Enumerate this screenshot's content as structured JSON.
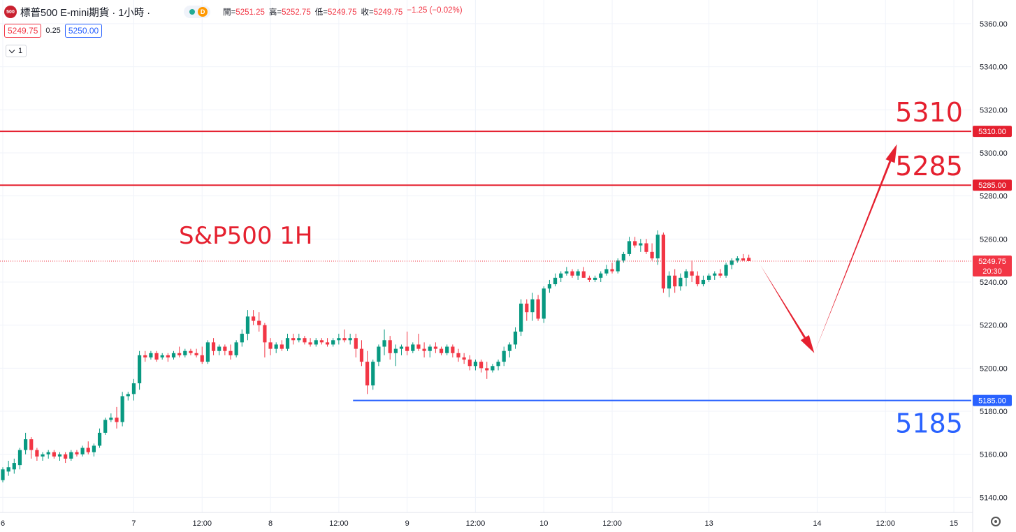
{
  "header": {
    "logo_text": "500",
    "symbol": "標普500 E-mini期貨 · 1小時 ·",
    "market_badge": "D",
    "ohlc": {
      "open_label": "開=",
      "open": "5251.25",
      "high_label": "高=",
      "high": "5252.75",
      "low_label": "低=",
      "low": "5249.75",
      "close_label": "收=",
      "close": "5249.75",
      "change": "−1.25 (−0.02%)"
    },
    "bid": "5249.75",
    "spread": "0.25",
    "ask": "5250.00",
    "indicators_count": "1"
  },
  "colors": {
    "up": "#089981",
    "down": "#f23645",
    "resistance": "#e5202f",
    "support": "#2962ff",
    "annotation": "#e5202f"
  },
  "chart_data": {
    "type": "candlestick",
    "title": "S&P500 1H",
    "y_axis": {
      "ylim": [
        5133,
        5371
      ],
      "ticks": [
        "5140.00",
        "5160.00",
        "5180.00",
        "5200.00",
        "5220.00",
        "5240.00",
        "5260.00",
        "5280.00",
        "5300.00",
        "5320.00",
        "5340.00",
        "5360.00"
      ],
      "position": "right"
    },
    "x_axis": {
      "ticks": [
        {
          "label": "6",
          "x": 0
        },
        {
          "label": "7",
          "x": 23
        },
        {
          "label": "12:00",
          "x": 35
        },
        {
          "label": "8",
          "x": 47
        },
        {
          "label": "12:00",
          "x": 59
        },
        {
          "label": "9",
          "x": 71
        },
        {
          "label": "12:00",
          "x": 83
        },
        {
          "label": "10",
          "x": 95
        },
        {
          "label": "12:00",
          "x": 107
        },
        {
          "label": "13",
          "x": 124
        },
        {
          "label": "14",
          "x": 143
        },
        {
          "label": "12:00",
          "x": 155
        },
        {
          "label": "15",
          "x": 167
        }
      ]
    },
    "current_price": {
      "value": 5249.75,
      "label": "5249.75",
      "countdown": "20:30"
    },
    "levels": [
      {
        "name": "resistance-5310",
        "value": 5310,
        "label": "5310.00",
        "annotation": "5310",
        "color": "#e5202f",
        "x_start": -4
      },
      {
        "name": "resistance-5285",
        "value": 5285,
        "label": "5285.00",
        "annotation": "5285",
        "color": "#e5202f",
        "x_start": -4
      },
      {
        "name": "support-5185",
        "value": 5185,
        "label": "5185.00",
        "annotation": "5185",
        "color": "#2962ff",
        "x_start": 61.5
      }
    ],
    "projection": [
      {
        "x": 133,
        "y": 5248
      },
      {
        "x": 142.5,
        "y": 5207
      },
      {
        "x": 157,
        "y": 5304
      }
    ],
    "candles": [
      [
        5148,
        5154,
        5147,
        5153
      ],
      [
        5152,
        5157,
        5150,
        5154
      ],
      [
        5153,
        5158,
        5151,
        5156
      ],
      [
        5155,
        5163,
        5153,
        5162
      ],
      [
        5162,
        5170,
        5160,
        5167
      ],
      [
        5167,
        5168,
        5158,
        5162
      ],
      [
        5162,
        5163,
        5157,
        5159
      ],
      [
        5159,
        5161,
        5157,
        5160
      ],
      [
        5160,
        5162,
        5158,
        5161
      ],
      [
        5161,
        5162,
        5158,
        5159
      ],
      [
        5159,
        5161,
        5157,
        5160
      ],
      [
        5160,
        5161,
        5156,
        5158
      ],
      [
        5158,
        5162,
        5157,
        5161
      ],
      [
        5161,
        5162,
        5159,
        5160
      ],
      [
        5160,
        5164,
        5159,
        5163
      ],
      [
        5163,
        5166,
        5160,
        5161
      ],
      [
        5161,
        5165,
        5159,
        5164
      ],
      [
        5164,
        5172,
        5163,
        5170
      ],
      [
        5170,
        5177,
        5169,
        5176
      ],
      [
        5176,
        5179,
        5175,
        5177
      ],
      [
        5177,
        5182,
        5172,
        5175
      ],
      [
        5175,
        5189,
        5173,
        5187
      ],
      [
        5187,
        5189,
        5185,
        5188
      ],
      [
        5188,
        5195,
        5185,
        5193
      ],
      [
        5193,
        5208,
        5190,
        5206
      ],
      [
        5206,
        5208,
        5203,
        5205
      ],
      [
        5205,
        5208,
        5204,
        5207
      ],
      [
        5207,
        5208,
        5203,
        5204
      ],
      [
        5205,
        5207,
        5204,
        5206
      ],
      [
        5206,
        5207,
        5203,
        5205
      ],
      [
        5205,
        5208,
        5204,
        5207
      ],
      [
        5207,
        5210,
        5205,
        5206
      ],
      [
        5206,
        5209,
        5205,
        5208
      ],
      [
        5208,
        5209,
        5206,
        5207
      ],
      [
        5207,
        5209,
        5205,
        5206
      ],
      [
        5206,
        5210,
        5202,
        5203
      ],
      [
        5203,
        5213,
        5202,
        5212
      ],
      [
        5212,
        5214,
        5206,
        5208
      ],
      [
        5208,
        5211,
        5206,
        5210
      ],
      [
        5210,
        5211,
        5206,
        5208
      ],
      [
        5208,
        5211,
        5204,
        5206
      ],
      [
        5206,
        5213,
        5205,
        5212
      ],
      [
        5212,
        5218,
        5210,
        5216
      ],
      [
        5216,
        5227,
        5213,
        5224
      ],
      [
        5224,
        5227,
        5220,
        5222
      ],
      [
        5222,
        5226,
        5217,
        5220
      ],
      [
        5220,
        5221,
        5205,
        5212
      ],
      [
        5212,
        5214,
        5206,
        5209
      ],
      [
        5209,
        5212,
        5207,
        5211
      ],
      [
        5211,
        5213,
        5208,
        5209
      ],
      [
        5209,
        5216,
        5208,
        5214
      ],
      [
        5214,
        5216,
        5211,
        5213
      ],
      [
        5213,
        5216,
        5212,
        5214
      ],
      [
        5214,
        5215,
        5211,
        5212
      ],
      [
        5212,
        5214,
        5210,
        5211
      ],
      [
        5211,
        5214,
        5210,
        5213
      ],
      [
        5213,
        5214,
        5211,
        5212
      ],
      [
        5212,
        5214,
        5210,
        5211
      ],
      [
        5211,
        5214,
        5210,
        5213
      ],
      [
        5213,
        5216,
        5211,
        5214
      ],
      [
        5214,
        5218,
        5212,
        5213
      ],
      [
        5213,
        5216,
        5211,
        5214
      ],
      [
        5214,
        5216,
        5205,
        5209
      ],
      [
        5209,
        5213,
        5201,
        5203
      ],
      [
        5203,
        5208,
        5188,
        5192
      ],
      [
        5192,
        5204,
        5190,
        5203
      ],
      [
        5203,
        5211,
        5201,
        5210
      ],
      [
        5210,
        5218,
        5206,
        5213
      ],
      [
        5213,
        5215,
        5204,
        5207
      ],
      [
        5207,
        5211,
        5201,
        5209
      ],
      [
        5209,
        5211,
        5206,
        5210
      ],
      [
        5210,
        5217,
        5206,
        5208
      ],
      [
        5208,
        5212,
        5207,
        5211
      ],
      [
        5211,
        5216,
        5208,
        5209
      ],
      [
        5209,
        5212,
        5205,
        5208
      ],
      [
        5208,
        5211,
        5205,
        5210
      ],
      [
        5210,
        5212,
        5207,
        5209
      ],
      [
        5209,
        5210,
        5206,
        5207
      ],
      [
        5207,
        5211,
        5206,
        5210
      ],
      [
        5210,
        5211,
        5205,
        5207
      ],
      [
        5207,
        5209,
        5203,
        5205
      ],
      [
        5205,
        5207,
        5202,
        5204
      ],
      [
        5204,
        5206,
        5199,
        5201
      ],
      [
        5201,
        5204,
        5199,
        5203
      ],
      [
        5203,
        5204,
        5198,
        5200
      ],
      [
        5200,
        5203,
        5195,
        5199
      ],
      [
        5199,
        5202,
        5198,
        5201
      ],
      [
        5201,
        5204,
        5199,
        5203
      ],
      [
        5203,
        5210,
        5201,
        5208
      ],
      [
        5208,
        5212,
        5205,
        5211
      ],
      [
        5211,
        5219,
        5209,
        5217
      ],
      [
        5217,
        5232,
        5215,
        5230
      ],
      [
        5230,
        5232,
        5222,
        5226
      ],
      [
        5226,
        5235,
        5222,
        5232
      ],
      [
        5232,
        5234,
        5222,
        5223
      ],
      [
        5223,
        5238,
        5221,
        5237
      ],
      [
        5237,
        5241,
        5235,
        5239
      ],
      [
        5239,
        5244,
        5238,
        5242
      ],
      [
        5242,
        5245,
        5240,
        5244
      ],
      [
        5244,
        5247,
        5243,
        5245
      ],
      [
        5245,
        5246,
        5242,
        5243
      ],
      [
        5243,
        5246,
        5241,
        5245
      ],
      [
        5245,
        5247,
        5242,
        5242
      ],
      [
        5242,
        5243,
        5240,
        5241
      ],
      [
        5241,
        5243,
        5240,
        5242
      ],
      [
        5242,
        5245,
        5240,
        5244
      ],
      [
        5244,
        5248,
        5243,
        5246
      ],
      [
        5246,
        5249,
        5244,
        5245
      ],
      [
        5245,
        5251,
        5244,
        5250
      ],
      [
        5250,
        5254,
        5249,
        5253
      ],
      [
        5253,
        5261,
        5252,
        5259
      ],
      [
        5259,
        5261,
        5256,
        5257
      ],
      [
        5257,
        5260,
        5254,
        5258
      ],
      [
        5258,
        5260,
        5253,
        5254
      ],
      [
        5254,
        5258,
        5250,
        5251
      ],
      [
        5251,
        5264,
        5248,
        5262
      ],
      [
        5262,
        5263,
        5235,
        5237
      ],
      [
        5237,
        5245,
        5233,
        5243
      ],
      [
        5243,
        5246,
        5235,
        5238
      ],
      [
        5238,
        5244,
        5236,
        5242
      ],
      [
        5242,
        5246,
        5238,
        5245
      ],
      [
        5245,
        5250,
        5240,
        5243
      ],
      [
        5243,
        5245,
        5238,
        5239
      ],
      [
        5239,
        5243,
        5238,
        5241
      ],
      [
        5241,
        5244,
        5240,
        5243
      ],
      [
        5243,
        5245,
        5241,
        5244
      ],
      [
        5244,
        5246,
        5242,
        5243
      ],
      [
        5243,
        5249,
        5242,
        5248
      ],
      [
        5248,
        5251,
        5246,
        5250
      ],
      [
        5250,
        5252,
        5249,
        5251
      ],
      [
        5251,
        5253,
        5250,
        5250
      ],
      [
        5251.25,
        5252.75,
        5249.75,
        5249.75
      ]
    ]
  }
}
